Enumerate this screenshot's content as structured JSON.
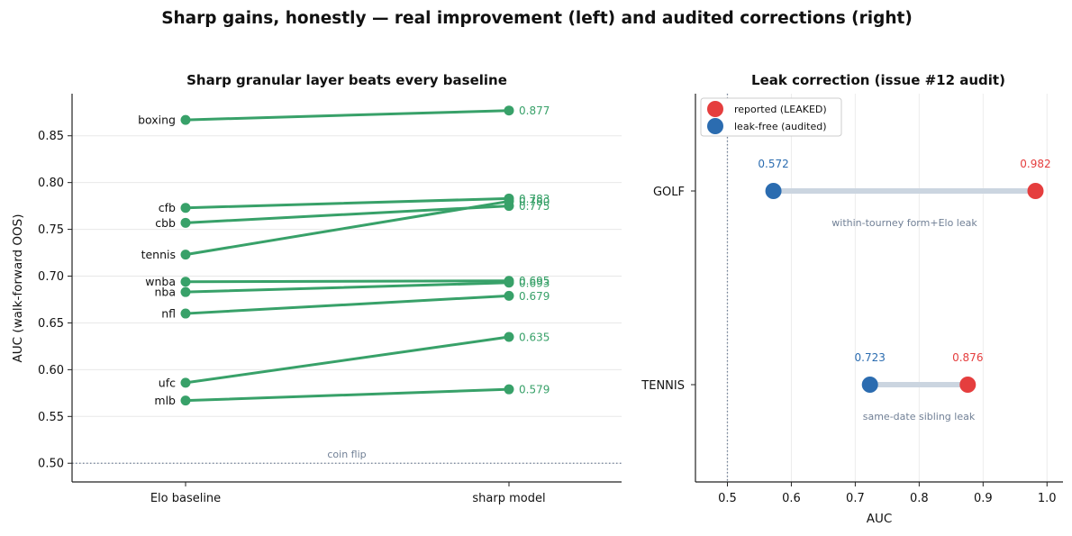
{
  "figure": {
    "suptitle": "Sharp gains, honestly — real improvement (left) and audited corrections (right)"
  },
  "chart_data": [
    {
      "type": "line",
      "title": "Sharp granular layer beats every baseline",
      "xlabel": "",
      "ylabel": "AUC (walk-forward OOS)",
      "categories": [
        "Elo baseline",
        "sharp model"
      ],
      "ylim": [
        0.48,
        0.895
      ],
      "yticks": [
        0.5,
        0.55,
        0.6,
        0.65,
        0.7,
        0.75,
        0.8,
        0.85
      ],
      "grid": "horizontal",
      "color": "#38a169",
      "series": [
        {
          "name": "boxing",
          "values": [
            0.867,
            0.877
          ],
          "label": "0.877"
        },
        {
          "name": "cfb",
          "values": [
            0.773,
            0.783
          ],
          "label": "0.783"
        },
        {
          "name": "cbb",
          "values": [
            0.757,
            0.775
          ],
          "label": "0.775"
        },
        {
          "name": "tennis",
          "values": [
            0.723,
            0.78
          ],
          "label": "0.780"
        },
        {
          "name": "wnba",
          "values": [
            0.694,
            0.695
          ],
          "label": "0.695"
        },
        {
          "name": "nba",
          "values": [
            0.683,
            0.693
          ],
          "label": "0.693"
        },
        {
          "name": "nfl",
          "values": [
            0.66,
            0.679
          ],
          "label": "0.679"
        },
        {
          "name": "ufc",
          "values": [
            0.586,
            0.635
          ],
          "label": "0.635"
        },
        {
          "name": "mlb",
          "values": [
            0.567,
            0.579
          ],
          "label": "0.579"
        }
      ],
      "reference_line": {
        "y": 0.5,
        "label": "coin flip"
      }
    },
    {
      "type": "scatter",
      "title": "Leak correction (issue #12 audit)",
      "xlabel": "AUC",
      "ylabel": "",
      "xlim": [
        0.45,
        1.025
      ],
      "xticks": [
        0.5,
        0.6,
        0.7,
        0.8,
        0.9,
        1.0
      ],
      "grid": "vertical",
      "legend": {
        "placement": "top-left",
        "entries": [
          {
            "label": "reported (LEAKED)",
            "color": "#e53e3e"
          },
          {
            "label": "leak-free (audited)",
            "color": "#2b6cb0"
          }
        ]
      },
      "rows": [
        {
          "category": "GOLF",
          "reported": 0.982,
          "leak_free": 0.572,
          "reported_label": "0.982",
          "leak_free_label": "0.572",
          "note": "within-tourney form+Elo leak"
        },
        {
          "category": "TENNIS",
          "reported": 0.876,
          "leak_free": 0.723,
          "reported_label": "0.876",
          "leak_free_label": "0.723",
          "note": "same-date sibling leak"
        }
      ],
      "reference_line": {
        "x": 0.5
      },
      "colors": {
        "reported": "#e53e3e",
        "leak_free": "#2b6cb0",
        "connector": "#cbd5e0"
      }
    }
  ]
}
